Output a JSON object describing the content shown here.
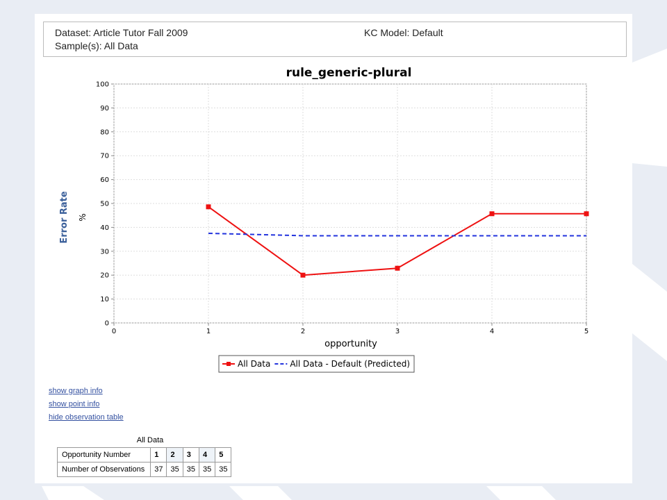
{
  "header": {
    "dataset": "Dataset: Article Tutor Fall 2009",
    "samples": "Sample(s): All Data",
    "kc_model": "KC Model: Default"
  },
  "chart_data": {
    "type": "line",
    "title": "rule_generic-plural",
    "xlabel": "opportunity",
    "ylabel": "Error Rate",
    "yunit": "%",
    "x": [
      1,
      2,
      3,
      4,
      5
    ],
    "series": [
      {
        "name": "All Data",
        "color": "#ee1111",
        "dashed": false,
        "marker": "square",
        "values": [
          48.6,
          20,
          22.9,
          45.7,
          45.7
        ]
      },
      {
        "name": "All Data - Default (Predicted)",
        "color": "#2233dd",
        "dashed": true,
        "marker": "none",
        "values": [
          37.5,
          36.5,
          36.5,
          36.5,
          36.5
        ]
      }
    ],
    "xlim": [
      0,
      5
    ],
    "xticks": [
      0,
      1,
      2,
      3,
      4,
      5
    ],
    "ylim": [
      0,
      100
    ],
    "yticks": [
      0,
      10,
      20,
      30,
      40,
      50,
      60,
      70,
      80,
      90,
      100
    ],
    "grid": true,
    "legend": "bottom"
  },
  "links": [
    "show graph info",
    "show point info",
    "hide observation table"
  ],
  "table": {
    "title": "All Data",
    "rows": [
      [
        "Opportunity Number",
        1,
        2,
        3,
        4,
        5
      ],
      [
        "Number of Observations",
        37,
        35,
        35,
        35,
        35
      ]
    ]
  }
}
